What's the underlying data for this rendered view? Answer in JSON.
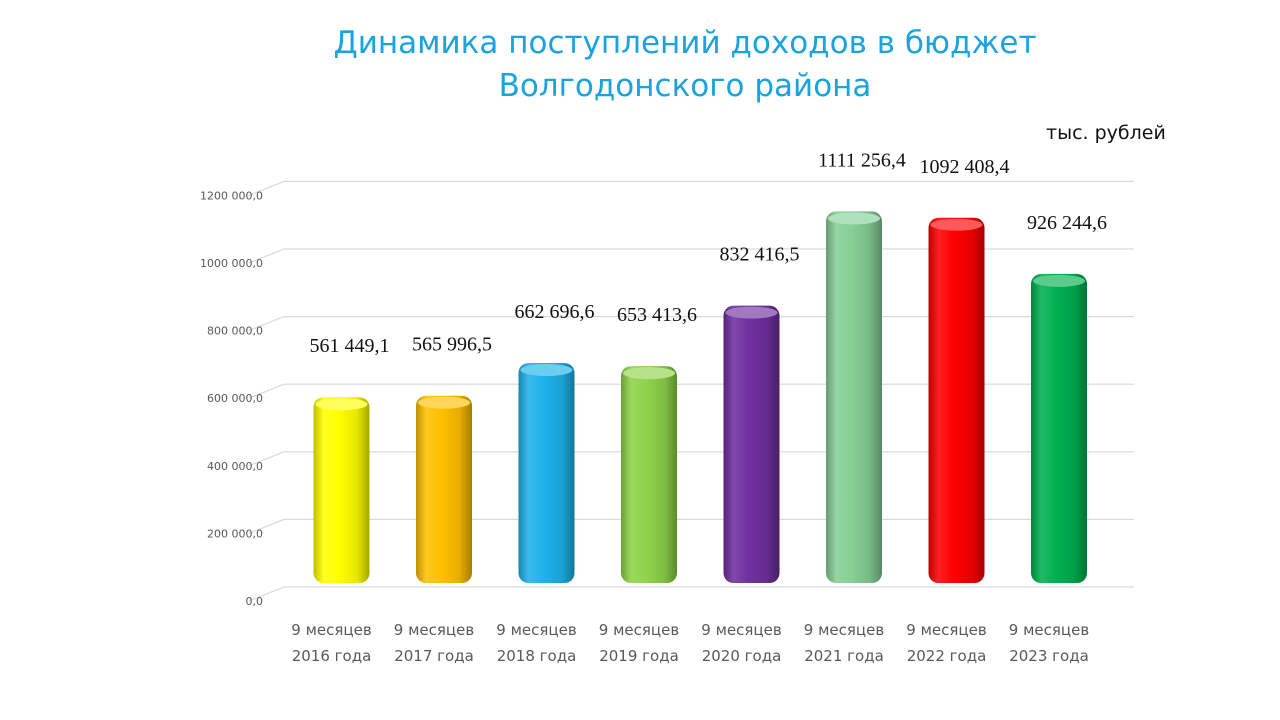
{
  "title_line1": "Динамика поступлений доходов в бюджет",
  "title_line2": "Волгодонского района",
  "unit": "тыс. рублей",
  "chart_data": {
    "type": "bar",
    "title": "Динамика поступлений доходов в бюджет Волгодонского района",
    "ylabel": "",
    "ylim": [
      0,
      1200000
    ],
    "y_ticks": [
      {
        "value": 0,
        "label": "0,0"
      },
      {
        "value": 200000,
        "label": "200 000,0"
      },
      {
        "value": 400000,
        "label": "400 000,0"
      },
      {
        "value": 600000,
        "label": "600 000,0"
      },
      {
        "value": 800000,
        "label": "800 000,0"
      },
      {
        "value": 1000000,
        "label": "1000 000,0"
      },
      {
        "value": 1200000,
        "label": "1200 000,0"
      }
    ],
    "categories": [
      [
        "9 месяцев",
        "2016 года"
      ],
      [
        "9 месяцев",
        "2017 года"
      ],
      [
        "9 месяцев",
        "2018 года"
      ],
      [
        "9 месяцев",
        "2019 года"
      ],
      [
        "9 месяцев",
        "2020 года"
      ],
      [
        "9 месяцев",
        "2021 года"
      ],
      [
        "9 месяцев",
        "2022 года"
      ],
      [
        "9 месяцев",
        "2023 года"
      ]
    ],
    "values": [
      561449.1,
      565996.5,
      662696.6,
      653413.6,
      832416.5,
      1111256.4,
      1092408.4,
      926244.6
    ],
    "data_labels": [
      "561 449,1",
      "565 996,5",
      "662 696,6",
      "653 413,6",
      "832 416,5",
      "1111 256,4",
      "1092 408,4",
      "926 244,6"
    ],
    "colors": [
      "#ffff00",
      "#ffc000",
      "#1eb2ea",
      "#8ed34a",
      "#7030a0",
      "#86cf96",
      "#ff0000",
      "#00b050"
    ],
    "grid": true,
    "legend": "none"
  }
}
